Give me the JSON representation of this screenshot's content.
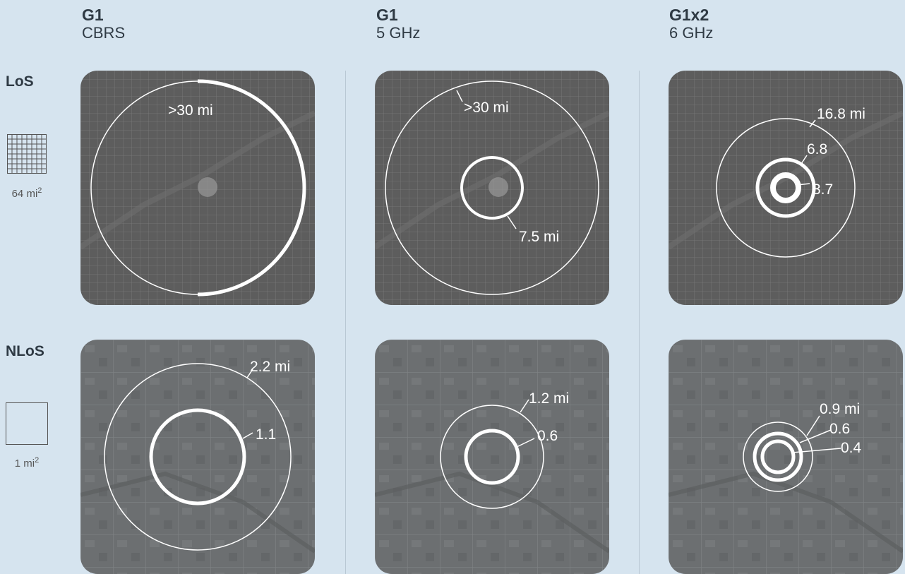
{
  "columns": [
    {
      "name": "G1",
      "band": "CBRS"
    },
    {
      "name": "G1",
      "band": "5 GHz"
    },
    {
      "name": "G1x2",
      "band": "6 GHz"
    }
  ],
  "rows": [
    {
      "label": "LoS",
      "scale": "64 mi",
      "scale_exp": "2"
    },
    {
      "label": "NLoS",
      "scale": "1 mi",
      "scale_exp": "2"
    }
  ],
  "tiles": {
    "los_cbrs": {
      "outer": ">30 mi"
    },
    "los_5ghz": {
      "outer": ">30 mi",
      "inner": "7.5 mi"
    },
    "los_6ghz": {
      "r1": "16.8 mi",
      "r2": "6.8",
      "r3": "3.7"
    },
    "nlos_cbrs": {
      "r1": "2.2 mi",
      "r2": "1.1"
    },
    "nlos_5ghz": {
      "r1": "1.2 mi",
      "r2": "0.6"
    },
    "nlos_6ghz": {
      "r1": "0.9 mi",
      "r2": "0.6",
      "r3": "0.4"
    }
  },
  "colors": {
    "background": "#d6e4ef",
    "los_map": "#5a5a5a",
    "nlos_map": "#6b6e70",
    "ring": "#ffffff"
  }
}
